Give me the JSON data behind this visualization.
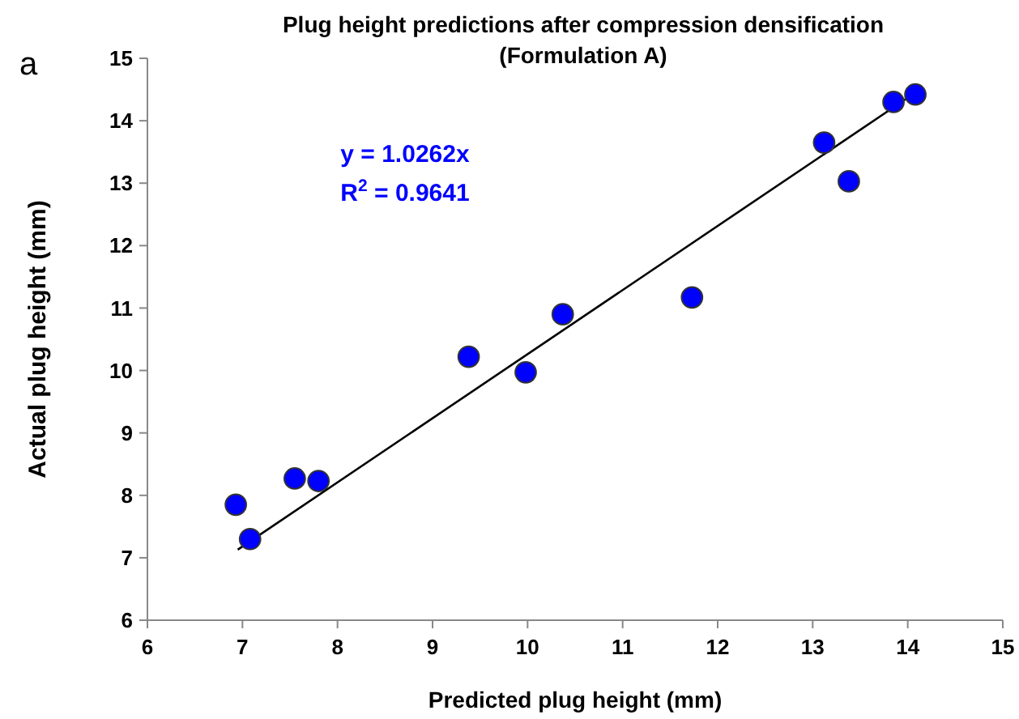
{
  "chart_data": {
    "type": "scatter",
    "title": "Plug height predictions after compression densification\n(Formulation A)",
    "xlabel": "Predicted plug height (mm)",
    "ylabel": "Actual plug height (mm)",
    "annotations": [
      "a",
      "y = 1.0262x",
      "R$^{2}$ = 0.9641"
    ],
    "xlim": [
      6,
      15
    ],
    "xticks": [
      6,
      7,
      8,
      9,
      10,
      11,
      12,
      13,
      14,
      15
    ],
    "ylim": [
      6,
      15
    ],
    "yticks": [
      6,
      7,
      8,
      9,
      10,
      11,
      12,
      13,
      14,
      15
    ],
    "grid": false,
    "series": [
      {
        "color": "#0000ff",
        "marker": "circle",
        "x": [
          6.93,
          7.08,
          7.55,
          7.8,
          9.38,
          9.98,
          10.37,
          11.73,
          13.12,
          13.38,
          13.85,
          14.08
        ],
        "values": [
          7.85,
          7.3,
          8.27,
          8.23,
          10.22,
          9.97,
          10.9,
          11.17,
          13.65,
          13.03,
          14.3,
          14.42
        ]
      },
      {
        "type": "line",
        "color": "#000000",
        "x": [
          6.95,
          14.05
        ],
        "values": [
          7.13,
          14.42
        ],
        "marker": "none"
      }
    ]
  }
}
